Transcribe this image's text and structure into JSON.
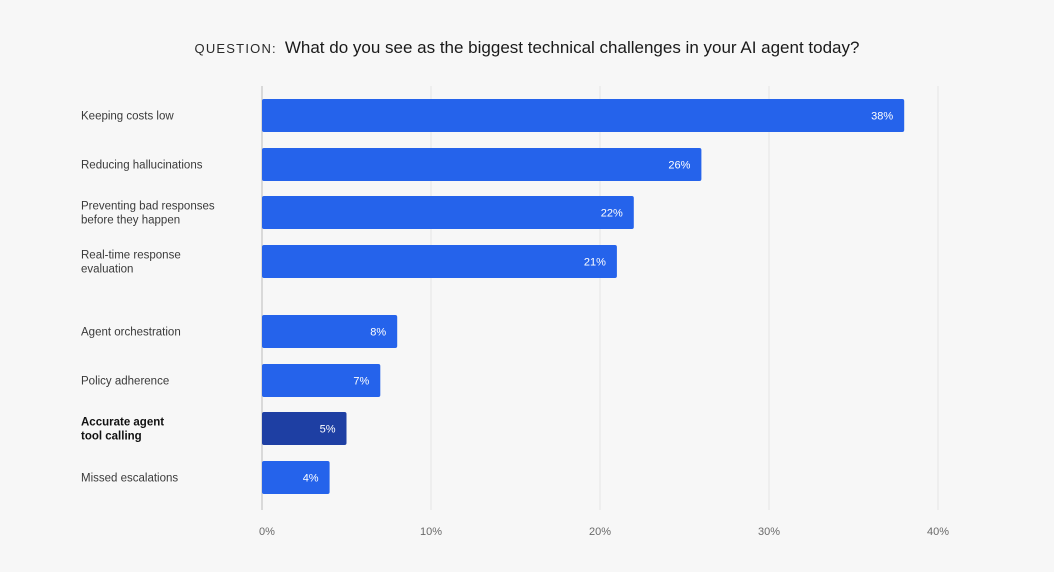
{
  "header": {
    "prefix": "QUESTION:",
    "question": "What do you see as the biggest technical challenges in your AI agent today?"
  },
  "colors": {
    "bar": "#2563eb",
    "bar_highlight": "#1e3fa3",
    "grid": "#e6e6e6",
    "axis": "#cfcfcf"
  },
  "chart_data": {
    "type": "bar",
    "orientation": "horizontal",
    "title": "What do you see as the biggest technical challenges in your AI agent today?",
    "categories": [
      [
        "Keeping costs low"
      ],
      [
        "Reducing hallucinations"
      ],
      [
        "Preventing bad responses",
        "before they happen"
      ],
      [
        "Real-time response",
        "evaluation"
      ],
      [
        "Agent orchestration"
      ],
      [
        "Policy adherence"
      ],
      [
        "Accurate agent",
        "tool calling"
      ],
      [
        "Missed escalations"
      ]
    ],
    "values": [
      38,
      26,
      22,
      21,
      8,
      7,
      5,
      4
    ],
    "value_labels": [
      "38%",
      "26%",
      "22%",
      "21%",
      "8%",
      "7%",
      "5%",
      "4%"
    ],
    "highlighted": [
      false,
      false,
      false,
      false,
      false,
      false,
      true,
      false
    ],
    "xlim": [
      0,
      40
    ],
    "xticks": [
      0,
      10,
      20,
      30,
      40
    ],
    "xtick_labels": [
      "0%",
      "10%",
      "20%",
      "30%",
      "40%"
    ],
    "xlabel": "",
    "ylabel": "",
    "grid": true
  }
}
